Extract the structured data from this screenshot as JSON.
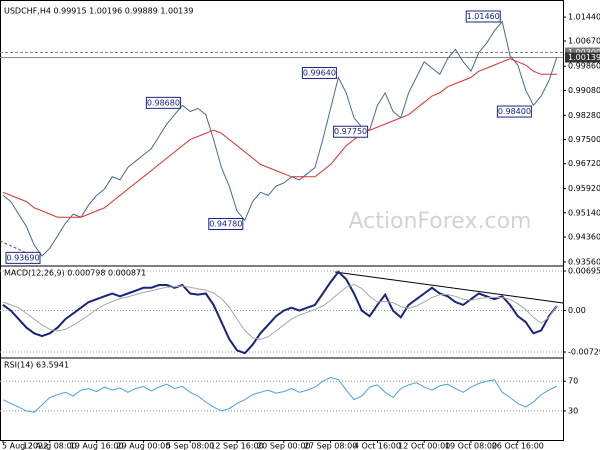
{
  "chart_data": [
    {
      "type": "line",
      "title": "USDCHF,H4  0.99915 1.00196 0.99889 1.00139",
      "watermark": "ActionForex.com",
      "categories": [
        "5 Aug 2022",
        null,
        null,
        null,
        null,
        null,
        "12 Aug 08:00",
        null,
        null,
        null,
        null,
        null,
        "19 Aug 16:00",
        null,
        null,
        null,
        null,
        null,
        "29 Aug 00:00",
        null,
        null,
        null,
        null,
        null,
        "5 Sep 08:00",
        null,
        null,
        null,
        null,
        null,
        "12 Sep 16:00",
        null,
        null,
        null,
        null,
        null,
        "20 Sep 00:00",
        null,
        null,
        null,
        null,
        null,
        "27 Sep 08:00",
        null,
        null,
        null,
        null,
        null,
        "4 Oct 16:00",
        null,
        null,
        null,
        null,
        null,
        "12 Oct 00:00",
        null,
        null,
        null,
        null,
        null,
        "19 Oct 08:00",
        null,
        null,
        null,
        null,
        null,
        "26 Oct 16:00",
        null,
        null,
        null,
        null,
        null
      ],
      "series": [
        {
          "color": "#4a6b8a",
          "values": [
            0.957,
            0.955,
            0.951,
            0.947,
            0.941,
            0.9375,
            0.94,
            0.944,
            0.948,
            0.951,
            0.95,
            0.954,
            0.957,
            0.959,
            0.963,
            0.962,
            0.966,
            0.968,
            0.97,
            0.972,
            0.976,
            0.98,
            0.983,
            0.986,
            0.984,
            0.985,
            0.983,
            0.975,
            0.966,
            0.96,
            0.952,
            0.949,
            0.955,
            0.958,
            0.957,
            0.96,
            0.961,
            0.963,
            0.962,
            0.964,
            0.966,
            0.975,
            0.985,
            0.995,
            0.99,
            0.982,
            0.979,
            0.978,
            0.986,
            0.99,
            0.984,
            0.982,
            0.99,
            0.995,
            1.0,
            0.998,
            0.996,
            1.001,
            1.004,
            1.0,
            0.997,
            1.003,
            1.006,
            1.01,
            1.013,
            1.002,
            0.999,
            0.991,
            0.986,
            0.989,
            0.994,
            1.0014
          ]
        },
        {
          "color": "#e03030",
          "values": [
            0.958,
            0.957,
            0.956,
            0.955,
            0.953,
            0.952,
            0.951,
            0.95,
            0.95,
            0.95,
            0.95,
            0.951,
            0.952,
            0.953,
            0.955,
            0.957,
            0.959,
            0.961,
            0.963,
            0.965,
            0.967,
            0.969,
            0.971,
            0.973,
            0.975,
            0.976,
            0.977,
            0.978,
            0.977,
            0.975,
            0.973,
            0.971,
            0.969,
            0.967,
            0.966,
            0.965,
            0.964,
            0.963,
            0.963,
            0.963,
            0.963,
            0.965,
            0.967,
            0.97,
            0.973,
            0.975,
            0.977,
            0.978,
            0.979,
            0.98,
            0.981,
            0.982,
            0.983,
            0.985,
            0.987,
            0.989,
            0.99,
            0.992,
            0.993,
            0.994,
            0.995,
            0.997,
            0.998,
            0.999,
            1.0,
            1.001,
            1.0,
            0.999,
            0.997,
            0.996,
            0.996,
            0.996
          ]
        }
      ],
      "ylim": [
        0.9346,
        1.0183
      ],
      "yticks": [
        {
          "value": 1.0144,
          "label": "1.01440"
        },
        {
          "value": 1.0067,
          "label": "1.00670"
        },
        {
          "value": 0.9986,
          "label": "0.99860"
        },
        {
          "value": 0.9908,
          "label": "0.99080"
        },
        {
          "value": 0.9828,
          "label": "0.98280"
        },
        {
          "value": 0.975,
          "label": "0.97500"
        },
        {
          "value": 0.9672,
          "label": "0.96720"
        },
        {
          "value": 0.9592,
          "label": "0.95920"
        },
        {
          "value": 0.9514,
          "label": "0.95140"
        },
        {
          "value": 0.9436,
          "label": "0.94360"
        },
        {
          "value": 0.9356,
          "label": "0.93560"
        }
      ],
      "levels": [
        {
          "value": 1.003,
          "label": "1.00300"
        },
        {
          "value": 1.00139,
          "label": "1.00139"
        }
      ],
      "annotations": [
        {
          "x": 64,
          "value": 1.0146,
          "label": "1.01460"
        },
        {
          "x": 43,
          "value": 0.9964,
          "label": "0.99640"
        },
        {
          "x": 23,
          "value": 0.9868,
          "label": "0.98680"
        },
        {
          "x": 5,
          "value": 0.9369,
          "label": "0.93690"
        },
        {
          "x": 31,
          "value": 0.9478,
          "label": "0.94780"
        },
        {
          "x": 47,
          "value": 0.9775,
          "label": "0.97750"
        },
        {
          "x": 68,
          "value": 0.984,
          "label": "0.98400"
        }
      ],
      "grid": false
    },
    {
      "type": "line",
      "title": "MACD(12,26,9) 0.000798 0.000871",
      "series": [
        {
          "color": "#1a237e",
          "values": [
            0.001,
            0.0,
            -0.0015,
            -0.003,
            -0.004,
            -0.0045,
            -0.004,
            -0.003,
            -0.0015,
            -0.0005,
            0.0005,
            0.0015,
            0.002,
            0.0025,
            0.003,
            0.0025,
            0.003,
            0.0035,
            0.004,
            0.004,
            0.0045,
            0.0045,
            0.004,
            0.0045,
            0.003,
            0.0028,
            0.003,
            0.001,
            -0.002,
            -0.005,
            -0.007,
            -0.0075,
            -0.006,
            -0.004,
            -0.0025,
            -0.001,
            0.0,
            0.0005,
            0.0,
            0.0005,
            0.001,
            0.003,
            0.005,
            0.0068,
            0.0055,
            0.003,
            0.0,
            -0.001,
            0.001,
            0.0028,
            0.0,
            -0.0012,
            0.001,
            0.002,
            0.003,
            0.004,
            0.003,
            0.0025,
            0.0015,
            0.001,
            0.002,
            0.003,
            0.0025,
            0.002,
            0.0025,
            0.001,
            -0.001,
            -0.002,
            -0.004,
            -0.0035,
            -0.001,
            0.0008
          ]
        },
        {
          "color": "#a8a8a8",
          "values": [
            0.0015,
            0.001,
            0.0005,
            -0.0005,
            -0.0015,
            -0.0025,
            -0.0033,
            -0.0036,
            -0.0033,
            -0.0026,
            -0.0017,
            -0.0008,
            0.0002,
            0.001,
            0.0016,
            0.0021,
            0.0024,
            0.0028,
            0.0032,
            0.0035,
            0.0038,
            0.0041,
            0.0042,
            0.0043,
            0.0041,
            0.0038,
            0.0036,
            0.0031,
            0.0021,
            0.0006,
            -0.0015,
            -0.0035,
            -0.0048,
            -0.0051,
            -0.0046,
            -0.0036,
            -0.0025,
            -0.0015,
            -0.0008,
            -0.0003,
            0.0002,
            0.0008,
            0.0018,
            0.003,
            0.0041,
            0.0046,
            0.0039,
            0.0025,
            0.0015,
            0.0016,
            0.0014,
            0.0007,
            0.0004,
            0.0008,
            0.0015,
            0.0023,
            0.0028,
            0.0028,
            0.0025,
            0.002,
            0.0018,
            0.0021,
            0.0023,
            0.0023,
            0.0023,
            0.002,
            0.0012,
            0.0002,
            -0.0012,
            -0.0022,
            -0.0012,
            0.00087
          ]
        }
      ],
      "ylim": [
        -0.00817,
        0.00766
      ],
      "yticks": [
        0.006954,
        {
          "value": 0,
          "label": "0.00"
        },
        -0.007294
      ],
      "grid": true
    },
    {
      "type": "line",
      "title": "RSI(14) 63.5941",
      "series": [
        {
          "color": "#4aa3e0",
          "values": [
            45,
            40,
            35,
            30,
            28,
            38,
            48,
            52,
            55,
            50,
            58,
            60,
            56,
            62,
            58,
            61,
            55,
            60,
            63,
            57,
            62,
            66,
            60,
            63,
            55,
            50,
            42,
            35,
            30,
            33,
            40,
            45,
            52,
            55,
            58,
            54,
            56,
            60,
            55,
            58,
            62,
            70,
            75,
            72,
            58,
            45,
            50,
            62,
            65,
            55,
            48,
            60,
            65,
            68,
            62,
            58,
            64,
            66,
            60,
            55,
            62,
            67,
            70,
            72,
            55,
            48,
            40,
            35,
            42,
            52,
            58,
            63.6
          ]
        }
      ],
      "ylim": [
        -8,
        100
      ],
      "yticks": [
        70,
        30
      ],
      "grid": true
    }
  ]
}
